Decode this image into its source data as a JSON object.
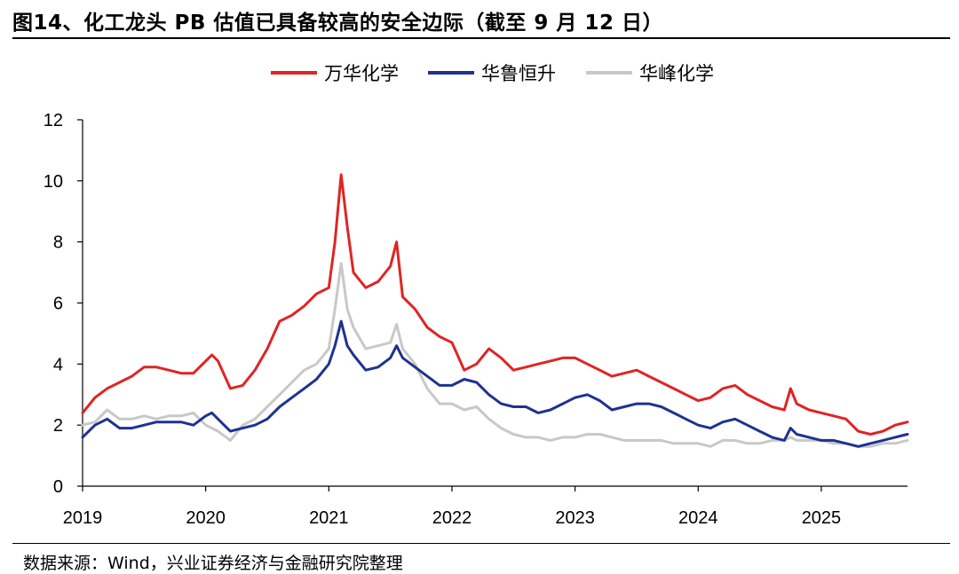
{
  "title": "图14、化工龙头 PB 估值已具备较高的安全边际（截至 9 月 12 日）",
  "source": "数据来源：Wind，兴业证券经济与金融研究院整理",
  "chart_data": {
    "type": "line",
    "xlim": [
      2019.0,
      2025.7
    ],
    "ylim": [
      0,
      12
    ],
    "x_ticks": [
      "2019",
      "2020",
      "2021",
      "2022",
      "2023",
      "2024",
      "2025"
    ],
    "y_ticks": [
      "0",
      "2",
      "4",
      "6",
      "8",
      "10",
      "12"
    ],
    "grid": false,
    "legend_position": "top-center",
    "series": [
      {
        "name": "万华化学",
        "color": "#e02424",
        "x": [
          2019.0,
          2019.1,
          2019.2,
          2019.3,
          2019.4,
          2019.5,
          2019.6,
          2019.7,
          2019.8,
          2019.9,
          2020.0,
          2020.05,
          2020.1,
          2020.2,
          2020.3,
          2020.4,
          2020.5,
          2020.6,
          2020.7,
          2020.8,
          2020.9,
          2021.0,
          2021.05,
          2021.1,
          2021.15,
          2021.2,
          2021.3,
          2021.4,
          2021.5,
          2021.55,
          2021.6,
          2021.7,
          2021.8,
          2021.9,
          2022.0,
          2022.1,
          2022.2,
          2022.3,
          2022.4,
          2022.5,
          2022.6,
          2022.7,
          2022.8,
          2022.9,
          2023.0,
          2023.1,
          2023.2,
          2023.3,
          2023.4,
          2023.5,
          2023.6,
          2023.7,
          2023.8,
          2023.9,
          2024.0,
          2024.1,
          2024.2,
          2024.3,
          2024.4,
          2024.5,
          2024.6,
          2024.7,
          2024.75,
          2024.8,
          2024.9,
          2025.0,
          2025.1,
          2025.2,
          2025.3,
          2025.4,
          2025.5,
          2025.6,
          2025.7
        ],
        "values": [
          2.4,
          2.9,
          3.2,
          3.4,
          3.6,
          3.9,
          3.9,
          3.8,
          3.7,
          3.7,
          4.1,
          4.3,
          4.1,
          3.2,
          3.3,
          3.8,
          4.5,
          5.4,
          5.6,
          5.9,
          6.3,
          6.5,
          8.0,
          10.2,
          8.5,
          7.0,
          6.5,
          6.7,
          7.2,
          8.0,
          6.2,
          5.8,
          5.2,
          4.9,
          4.7,
          3.8,
          4.0,
          4.5,
          4.2,
          3.8,
          3.9,
          4.0,
          4.1,
          4.2,
          4.2,
          4.0,
          3.8,
          3.6,
          3.7,
          3.8,
          3.6,
          3.4,
          3.2,
          3.0,
          2.8,
          2.9,
          3.2,
          3.3,
          3.0,
          2.8,
          2.6,
          2.5,
          3.2,
          2.7,
          2.5,
          2.4,
          2.3,
          2.2,
          1.8,
          1.7,
          1.8,
          2.0,
          2.1
        ]
      },
      {
        "name": "华鲁恒升",
        "color": "#1f3290",
        "x": [
          2019.0,
          2019.1,
          2019.2,
          2019.3,
          2019.4,
          2019.5,
          2019.6,
          2019.7,
          2019.8,
          2019.9,
          2020.0,
          2020.05,
          2020.1,
          2020.2,
          2020.3,
          2020.4,
          2020.5,
          2020.6,
          2020.7,
          2020.8,
          2020.9,
          2021.0,
          2021.05,
          2021.1,
          2021.15,
          2021.2,
          2021.3,
          2021.4,
          2021.5,
          2021.55,
          2021.6,
          2021.7,
          2021.8,
          2021.9,
          2022.0,
          2022.1,
          2022.2,
          2022.3,
          2022.4,
          2022.5,
          2022.6,
          2022.7,
          2022.8,
          2022.9,
          2023.0,
          2023.1,
          2023.2,
          2023.3,
          2023.4,
          2023.5,
          2023.6,
          2023.7,
          2023.8,
          2023.9,
          2024.0,
          2024.1,
          2024.2,
          2024.3,
          2024.4,
          2024.5,
          2024.6,
          2024.7,
          2024.75,
          2024.8,
          2024.9,
          2025.0,
          2025.1,
          2025.2,
          2025.3,
          2025.4,
          2025.5,
          2025.6,
          2025.7
        ],
        "values": [
          1.6,
          2.0,
          2.2,
          1.9,
          1.9,
          2.0,
          2.1,
          2.1,
          2.1,
          2.0,
          2.3,
          2.4,
          2.2,
          1.8,
          1.9,
          2.0,
          2.2,
          2.6,
          2.9,
          3.2,
          3.5,
          4.0,
          4.6,
          5.4,
          4.6,
          4.3,
          3.8,
          3.9,
          4.2,
          4.6,
          4.2,
          3.9,
          3.6,
          3.3,
          3.3,
          3.5,
          3.4,
          3.0,
          2.7,
          2.6,
          2.6,
          2.4,
          2.5,
          2.7,
          2.9,
          3.0,
          2.8,
          2.5,
          2.6,
          2.7,
          2.7,
          2.6,
          2.4,
          2.2,
          2.0,
          1.9,
          2.1,
          2.2,
          2.0,
          1.8,
          1.6,
          1.5,
          1.9,
          1.7,
          1.6,
          1.5,
          1.5,
          1.4,
          1.3,
          1.4,
          1.5,
          1.6,
          1.7
        ]
      },
      {
        "name": "华峰化学",
        "color": "#c8c8c8",
        "x": [
          2019.0,
          2019.1,
          2019.2,
          2019.3,
          2019.4,
          2019.5,
          2019.6,
          2019.7,
          2019.8,
          2019.9,
          2020.0,
          2020.05,
          2020.1,
          2020.2,
          2020.3,
          2020.4,
          2020.5,
          2020.6,
          2020.7,
          2020.8,
          2020.9,
          2021.0,
          2021.05,
          2021.1,
          2021.15,
          2021.2,
          2021.3,
          2021.4,
          2021.5,
          2021.55,
          2021.6,
          2021.7,
          2021.8,
          2021.9,
          2022.0,
          2022.1,
          2022.2,
          2022.3,
          2022.4,
          2022.5,
          2022.6,
          2022.7,
          2022.8,
          2022.9,
          2023.0,
          2023.1,
          2023.2,
          2023.3,
          2023.4,
          2023.5,
          2023.6,
          2023.7,
          2023.8,
          2023.9,
          2024.0,
          2024.1,
          2024.2,
          2024.3,
          2024.4,
          2024.5,
          2024.6,
          2024.7,
          2024.75,
          2024.8,
          2024.9,
          2025.0,
          2025.1,
          2025.2,
          2025.3,
          2025.4,
          2025.5,
          2025.6,
          2025.7
        ],
        "values": [
          2.0,
          2.1,
          2.5,
          2.2,
          2.2,
          2.3,
          2.2,
          2.3,
          2.3,
          2.4,
          2.0,
          1.9,
          1.8,
          1.5,
          2.0,
          2.2,
          2.6,
          3.0,
          3.4,
          3.8,
          4.0,
          4.5,
          5.8,
          7.3,
          5.8,
          5.2,
          4.5,
          4.6,
          4.7,
          5.3,
          4.5,
          4.0,
          3.2,
          2.7,
          2.7,
          2.5,
          2.6,
          2.2,
          1.9,
          1.7,
          1.6,
          1.6,
          1.5,
          1.6,
          1.6,
          1.7,
          1.7,
          1.6,
          1.5,
          1.5,
          1.5,
          1.5,
          1.4,
          1.4,
          1.4,
          1.3,
          1.5,
          1.5,
          1.4,
          1.4,
          1.5,
          1.5,
          1.6,
          1.5,
          1.5,
          1.5,
          1.4,
          1.4,
          1.3,
          1.3,
          1.4,
          1.4,
          1.5
        ]
      }
    ]
  }
}
